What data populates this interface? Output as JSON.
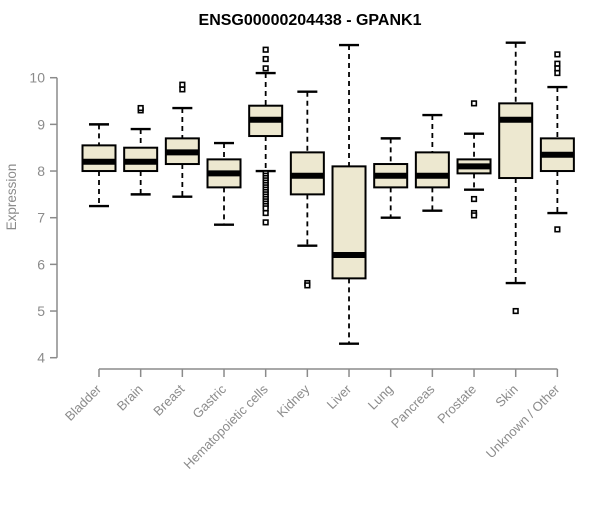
{
  "page": {
    "title": "ENSG00000204438 - GPANK1"
  },
  "chart_data": {
    "type": "boxplot",
    "title": "ENSG00000204438 - GPANK1",
    "xlabel": "",
    "ylabel": "Expression",
    "ylim": [
      3.8,
      10.9
    ],
    "yticks": [
      4,
      5,
      6,
      7,
      8,
      9,
      10
    ],
    "grid": false,
    "legend": "none",
    "categories": [
      "Bladder",
      "Brain",
      "Breast",
      "Gastric",
      "Hematopoietic cells",
      "Kidney",
      "Liver",
      "Lung",
      "Pancreas",
      "Prostate",
      "Skin",
      "Unknown / Other"
    ],
    "series": [
      {
        "name": "Bladder",
        "whisker_low": 7.25,
        "q1": 8.0,
        "median": 8.2,
        "q3": 8.55,
        "whisker_high": 9.0,
        "outliers": []
      },
      {
        "name": "Brain",
        "whisker_low": 7.5,
        "q1": 8.0,
        "median": 8.2,
        "q3": 8.5,
        "whisker_high": 8.9,
        "outliers": [
          9.3,
          9.35
        ]
      },
      {
        "name": "Breast",
        "whisker_low": 7.45,
        "q1": 8.15,
        "median": 8.4,
        "q3": 8.7,
        "whisker_high": 9.35,
        "outliers": [
          9.75,
          9.85
        ]
      },
      {
        "name": "Gastric",
        "whisker_low": 6.85,
        "q1": 7.65,
        "median": 7.95,
        "q3": 8.25,
        "whisker_high": 8.6,
        "outliers": []
      },
      {
        "name": "Hematopoietic cells",
        "whisker_low": 8.0,
        "q1": 8.75,
        "median": 9.1,
        "q3": 9.4,
        "whisker_high": 10.1,
        "outliers": [
          10.6,
          10.4,
          10.2,
          7.95,
          7.9,
          7.85,
          7.8,
          7.75,
          7.7,
          7.65,
          7.6,
          7.55,
          7.5,
          7.45,
          7.4,
          7.35,
          7.3,
          7.25,
          7.2,
          7.1,
          6.9
        ]
      },
      {
        "name": "Kidney",
        "whisker_low": 6.4,
        "q1": 7.5,
        "median": 7.9,
        "q3": 8.4,
        "whisker_high": 9.7,
        "outliers": [
          5.6,
          5.55
        ]
      },
      {
        "name": "Liver",
        "whisker_low": 4.3,
        "q1": 5.7,
        "median": 6.2,
        "q3": 8.1,
        "whisker_high": 10.7,
        "outliers": []
      },
      {
        "name": "Lung",
        "whisker_low": 7.0,
        "q1": 7.65,
        "median": 7.9,
        "q3": 8.15,
        "whisker_high": 8.7,
        "outliers": []
      },
      {
        "name": "Pancreas",
        "whisker_low": 7.15,
        "q1": 7.65,
        "median": 7.9,
        "q3": 8.4,
        "whisker_high": 9.2,
        "outliers": []
      },
      {
        "name": "Prostate",
        "whisker_low": 7.6,
        "q1": 7.95,
        "median": 8.1,
        "q3": 8.25,
        "whisker_high": 8.8,
        "outliers": [
          9.45,
          7.4,
          7.1,
          7.05
        ]
      },
      {
        "name": "Skin",
        "whisker_low": 5.6,
        "q1": 7.85,
        "median": 9.1,
        "q3": 9.45,
        "whisker_high": 10.75,
        "outliers": [
          5.0
        ]
      },
      {
        "name": "Unknown / Other",
        "whisker_low": 7.1,
        "q1": 8.0,
        "median": 8.35,
        "q3": 8.7,
        "whisker_high": 9.8,
        "outliers": [
          10.5,
          10.3,
          10.2,
          10.1,
          6.75
        ]
      }
    ],
    "colors": {
      "box_fill": "#EDE8D0",
      "box_border": "#000000",
      "median": "#000000",
      "whisker": "#000000",
      "axis": "#8B8B8B",
      "background": "#FFFFFF"
    }
  }
}
